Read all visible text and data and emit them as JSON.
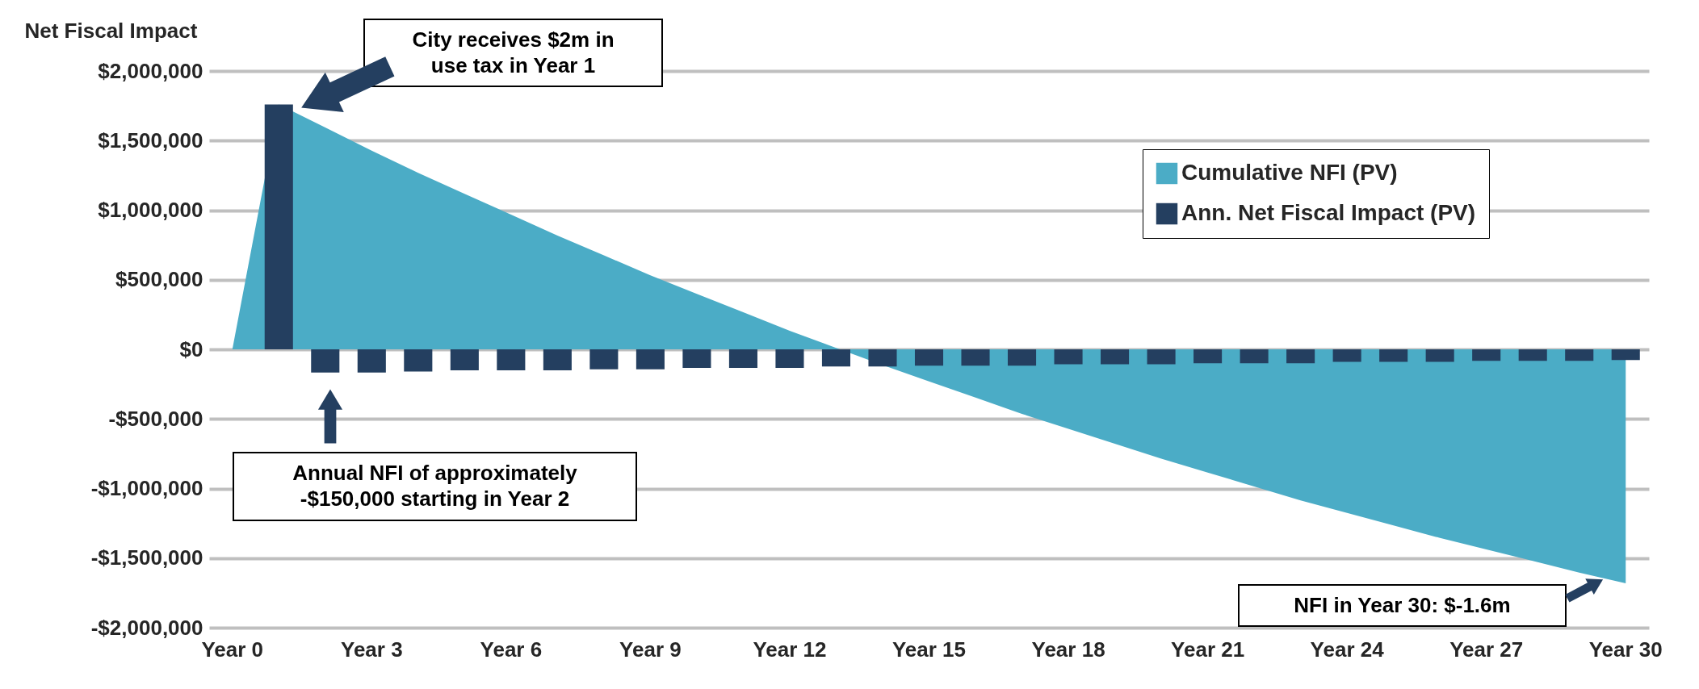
{
  "chart_data": {
    "type": "area",
    "ylabel": "Net Fiscal Impact",
    "categories": [
      "Year 0",
      null,
      null,
      "Year 3",
      null,
      null,
      "Year 6",
      null,
      null,
      "Year 9",
      null,
      null,
      "Year 12",
      null,
      null,
      "Year 15",
      null,
      null,
      "Year 18",
      null,
      null,
      "Year 21",
      null,
      null,
      "Year 24",
      null,
      null,
      "Year 27",
      null,
      null,
      "Year 30"
    ],
    "series": [
      {
        "name": "Cumulative NFI (PV)",
        "color": "#4bacc6",
        "values": [
          0,
          1760000,
          1594000,
          1428000,
          1268000,
          1118000,
          968000,
          818000,
          675000,
          532000,
          399000,
          266000,
          133000,
          10000,
          -113000,
          -230000,
          -347000,
          -464000,
          -571000,
          -678000,
          -785000,
          -885000,
          -985000,
          -1085000,
          -1175000,
          -1265000,
          -1355000,
          -1438000,
          -1521000,
          -1604000,
          -1681000
        ]
      },
      {
        "name": "Ann. Net Fiscal Impact (PV)",
        "type": "bar",
        "color": "#243f60",
        "values": [
          null,
          1760000,
          -166000,
          -166000,
          -160000,
          -150000,
          -150000,
          -150000,
          -143000,
          -143000,
          -133000,
          -133000,
          -133000,
          -123000,
          -123000,
          -117000,
          -117000,
          -117000,
          -107000,
          -107000,
          -107000,
          -100000,
          -100000,
          -100000,
          -90000,
          -90000,
          -90000,
          -83000,
          -83000,
          -83000,
          -77000
        ]
      }
    ],
    "ylim": [
      -2000000,
      2000000
    ],
    "yticks": [
      {
        "value": -2000000,
        "label": "-$2,000,000"
      },
      {
        "value": -1500000,
        "label": "-$1,500,000"
      },
      {
        "value": -1000000,
        "label": "-$1,000,000"
      },
      {
        "value": -500000,
        "label": "-$500,000"
      },
      {
        "value": 0,
        "label": "$0"
      },
      {
        "value": 500000,
        "label": "$500,000"
      },
      {
        "value": 1000000,
        "label": "$1,000,000"
      },
      {
        "value": 1500000,
        "label": "$1,500,000"
      },
      {
        "value": 2000000,
        "label": "$2,000,000"
      }
    ],
    "grid": "y",
    "legend": "top right",
    "annotations": [
      "City receives $2m in use tax in Year 1",
      "Annual NFI of approximately -$150,000 starting in Year 2",
      "NFI in Year 30: $-1.6m"
    ]
  }
}
